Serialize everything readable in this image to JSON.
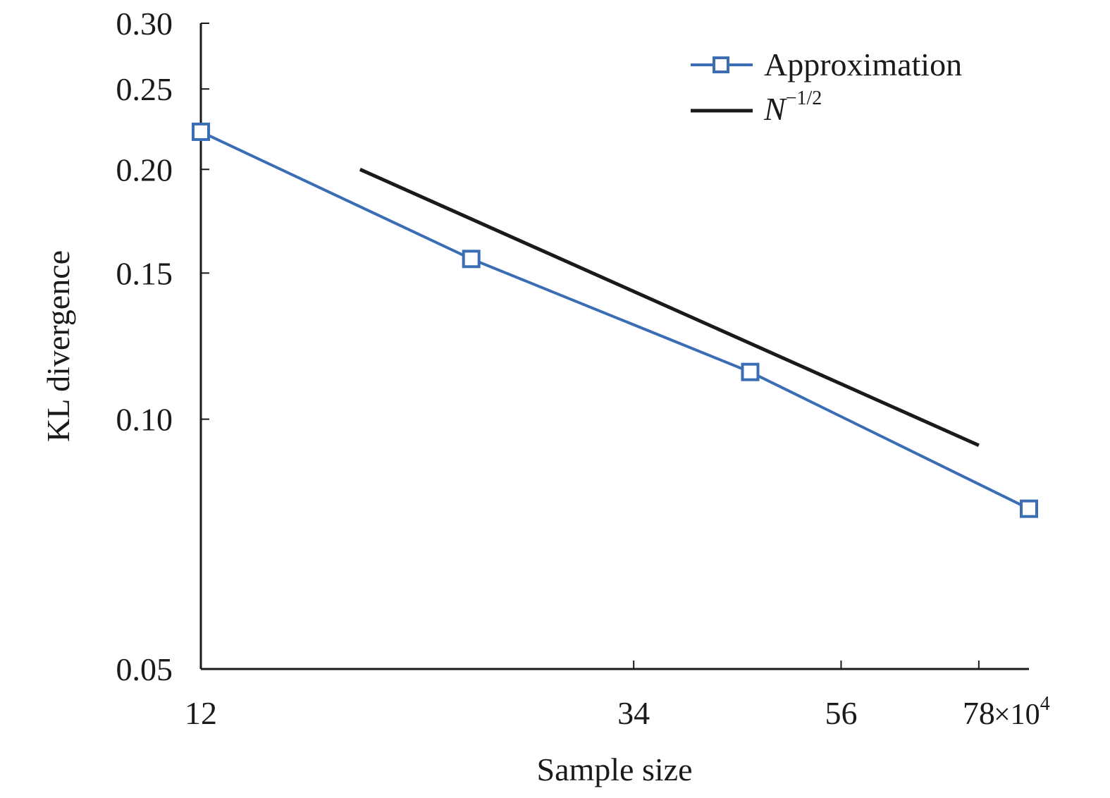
{
  "chart_data": {
    "type": "line",
    "xlabel": "Sample size",
    "ylabel": "KL divergence",
    "x_scale": "log",
    "y_scale": "log",
    "xlim": [
      12,
      88
    ],
    "ylim": [
      0.05,
      0.3
    ],
    "x_ticks": [
      12,
      34,
      56,
      78
    ],
    "x_tick_labels": [
      "12",
      "34",
      "56",
      "78"
    ],
    "x_multiplier": "×10",
    "x_multiplier_exp": "4",
    "y_ticks": [
      0.05,
      0.1,
      0.15,
      0.2,
      0.25,
      0.3
    ],
    "y_tick_labels": [
      "0.05",
      "0.10",
      "0.15",
      "0.20",
      "0.25",
      "0.30"
    ],
    "grid": false,
    "legend_position": "top-right",
    "series": [
      {
        "name": "Approximation",
        "color": "#3b6db5",
        "marker": "square",
        "x": [
          12,
          23,
          45,
          88
        ],
        "y": [
          0.222,
          0.156,
          0.114,
          0.078
        ]
      },
      {
        "name": "N",
        "name_sup": "−1/2",
        "color": "#1a1a1a",
        "marker": "none",
        "x": [
          17.6,
          78
        ],
        "y": [
          0.2,
          0.093
        ]
      }
    ]
  }
}
